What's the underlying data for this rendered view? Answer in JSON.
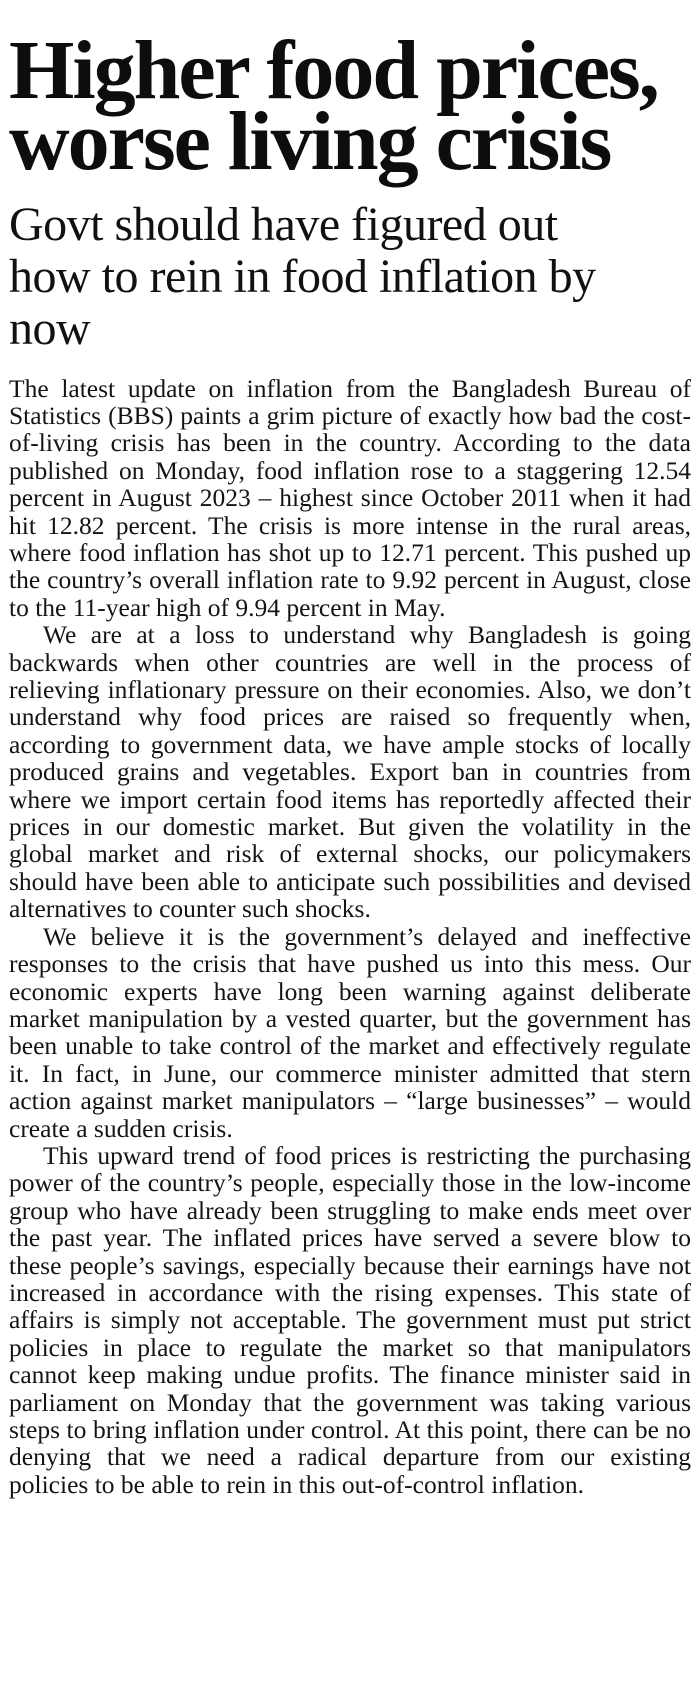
{
  "theme": {
    "background_color": "#ffffff",
    "text_color": "#141414",
    "headline_color": "#0d0d0d"
  },
  "article": {
    "headline": "Higher food prices, worse living crisis",
    "subheadline": "Govt should have figured out how to rein in food inflation by now",
    "paragraphs": [
      "The latest update on inflation from the Bangladesh Bureau of Statistics (BBS) paints a grim picture of exactly how bad the cost-of-living crisis has been in the country. According to the data published on Monday, food inflation rose to a staggering 12.54 percent in August 2023 – highest since October 2011 when it had hit 12.82 percent. The crisis is more intense in the rural areas, where food inflation has shot up to 12.71 percent. This pushed up the country’s overall inflation rate to 9.92 percent in August, close to the 11-year high of 9.94 percent in May.",
      "We are at a loss to understand why Bangladesh is going backwards when other countries are well in the process of relieving inflationary pressure on their economies. Also, we don’t understand why food prices are raised so frequently when, according to government data, we have ample stocks of locally produced grains and vegetables. Export ban in countries from where we import certain food items has reportedly affected their prices in our domestic market. But given the volatility in the global market and risk of external shocks, our policymakers should have been able to anticipate such possibilities and devised alternatives to counter such shocks.",
      "We believe it is the government’s delayed and ineffective responses to the crisis that have pushed us into this mess. Our economic experts have long been warning against deliberate market manipulation by a vested quarter, but the government has been unable to take control of the market and effectively regulate it. In fact, in June, our commerce minister admitted that stern action against market manipulators – “large businesses” – would create a sudden crisis.",
      "This upward trend of food prices is restricting the purchasing power of the country’s people, especially those in the low-income group who have already been struggling to make ends meet over the past year. The inflated prices have served a severe blow to these people’s savings, especially because their earnings have not increased in accordance with the rising expenses. This state of affairs is simply not acceptable. The government must put strict policies in place to regulate the market so that manipulators cannot keep making undue profits. The finance minister said in parliament on Monday that the government was taking various steps to bring inflation under control. At this point, there can be no denying that we need a radical departure from our existing policies to be able to rein in this out-of-control inflation."
    ]
  }
}
